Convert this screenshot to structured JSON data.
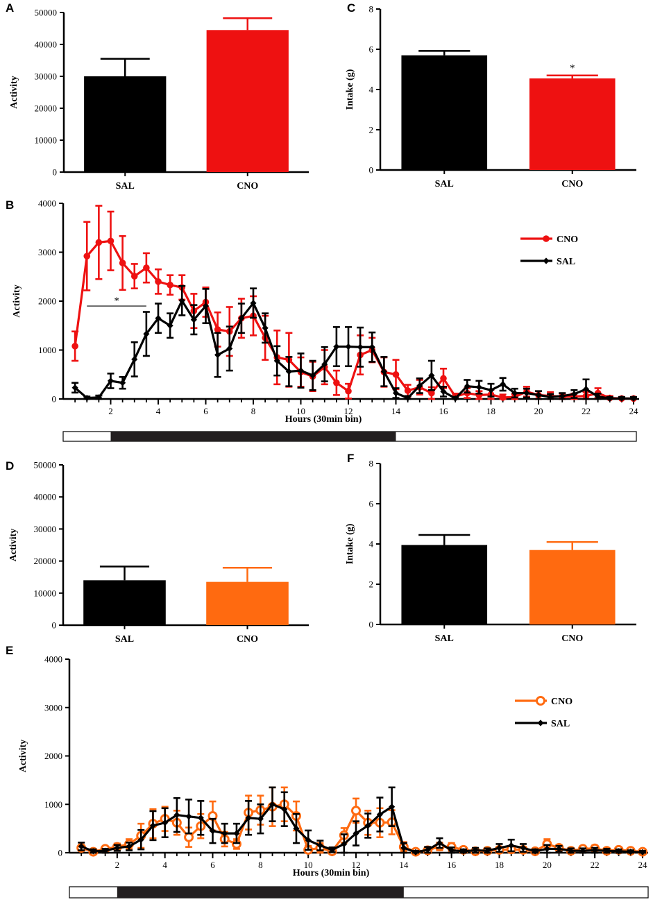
{
  "colors": {
    "SAL": "#000000",
    "CNO_red": "#ee1111",
    "CNO_orange": "#ff6a10",
    "axis": "#000000"
  },
  "chart_data": [
    {
      "panel": "A",
      "type": "bar",
      "ylabel": "Activity",
      "categories": [
        "SAL",
        "CNO"
      ],
      "values": [
        30000,
        44500
      ],
      "errors": [
        5500,
        3700
      ],
      "colors": [
        "#000000",
        "#ee1111"
      ],
      "ylim": [
        0,
        50000
      ],
      "yticks": [
        0,
        10000,
        20000,
        30000,
        40000,
        50000
      ],
      "significance": []
    },
    {
      "panel": "C",
      "type": "bar",
      "ylabel": "Intake (g)",
      "categories": [
        "SAL",
        "CNO"
      ],
      "values": [
        5.7,
        4.55
      ],
      "errors": [
        0.22,
        0.15
      ],
      "colors": [
        "#000000",
        "#ee1111"
      ],
      "ylim": [
        0,
        8
      ],
      "yticks": [
        0,
        2,
        4,
        6,
        8
      ],
      "significance": [
        "",
        "*"
      ]
    },
    {
      "panel": "B",
      "type": "line",
      "ylabel": "Activity",
      "xlabel": "Hours (30min bin)",
      "xlim": [
        0.5,
        24
      ],
      "ylim": [
        0,
        4000
      ],
      "xticks": [
        2,
        4,
        6,
        8,
        10,
        12,
        14,
        16,
        18,
        20,
        22,
        24
      ],
      "yticks": [
        0,
        1000,
        2000,
        3000,
        4000
      ],
      "dark_phase": [
        2,
        14
      ],
      "significance_bar": {
        "from": 1,
        "to": 3.5,
        "value": 1900,
        "label": "*"
      },
      "x": [
        0.5,
        1,
        1.5,
        2,
        2.5,
        3,
        3.5,
        4,
        4.5,
        5,
        5.5,
        6,
        6.5,
        7,
        7.5,
        8,
        8.5,
        9,
        9.5,
        10,
        10.5,
        11,
        11.5,
        12,
        12.5,
        13,
        13.5,
        14,
        14.5,
        15,
        15.5,
        16,
        16.5,
        17,
        17.5,
        18,
        18.5,
        19,
        19.5,
        20,
        20.5,
        21,
        21.5,
        22,
        22.5,
        23,
        23.5,
        24
      ],
      "series": [
        {
          "name": "CNO",
          "marker": "filled-circle",
          "color": "#ee1111",
          "values": [
            1080,
            2920,
            3200,
            3230,
            2780,
            2510,
            2680,
            2400,
            2330,
            2280,
            1800,
            1980,
            1420,
            1380,
            1650,
            1700,
            1250,
            850,
            800,
            550,
            460,
            650,
            330,
            160,
            900,
            1000,
            550,
            500,
            170,
            240,
            120,
            420,
            50,
            120,
            80,
            90,
            30,
            40,
            150,
            80,
            60,
            50,
            50,
            60,
            120,
            20,
            10,
            10
          ],
          "errors": [
            300,
            700,
            750,
            600,
            550,
            250,
            300,
            250,
            200,
            250,
            350,
            300,
            350,
            500,
            400,
            400,
            450,
            550,
            550,
            300,
            300,
            350,
            250,
            150,
            400,
            250,
            300,
            300,
            120,
            150,
            120,
            200,
            60,
            100,
            80,
            100,
            60,
            60,
            100,
            80,
            80,
            60,
            60,
            80,
            100,
            40,
            30,
            30
          ]
        },
        {
          "name": "SAL",
          "marker": "filled-diamond",
          "color": "#000000",
          "values": [
            230,
            20,
            30,
            370,
            330,
            810,
            1330,
            1650,
            1500,
            2010,
            1620,
            1900,
            900,
            1030,
            1650,
            1960,
            1450,
            780,
            560,
            580,
            480,
            710,
            1070,
            1070,
            1060,
            1060,
            560,
            120,
            20,
            270,
            480,
            150,
            10,
            260,
            240,
            180,
            300,
            120,
            120,
            80,
            40,
            60,
            100,
            200,
            50,
            10,
            10,
            10
          ],
          "errors": [
            100,
            30,
            40,
            150,
            120,
            350,
            450,
            300,
            250,
            300,
            300,
            350,
            450,
            450,
            300,
            300,
            300,
            300,
            300,
            350,
            300,
            350,
            400,
            400,
            400,
            300,
            300,
            100,
            40,
            150,
            300,
            100,
            30,
            130,
            130,
            130,
            130,
            90,
            90,
            80,
            60,
            60,
            80,
            200,
            60,
            30,
            30,
            30
          ]
        }
      ],
      "legend": [
        "CNO",
        "SAL"
      ],
      "legend_position": "top-right"
    },
    {
      "panel": "D",
      "type": "bar",
      "ylabel": "Activity",
      "categories": [
        "SAL",
        "CNO"
      ],
      "values": [
        14000,
        13500
      ],
      "errors": [
        4300,
        4400
      ],
      "colors": [
        "#000000",
        "#ff6a10"
      ],
      "ylim": [
        0,
        50000
      ],
      "yticks": [
        0,
        10000,
        20000,
        30000,
        40000,
        50000
      ],
      "significance": []
    },
    {
      "panel": "F",
      "type": "bar",
      "ylabel": "Intake (g)",
      "categories": [
        "SAL",
        "CNO"
      ],
      "values": [
        3.95,
        3.7
      ],
      "errors": [
        0.5,
        0.4
      ],
      "colors": [
        "#000000",
        "#ff6a10"
      ],
      "ylim": [
        0,
        8
      ],
      "yticks": [
        0,
        2,
        4,
        6,
        8
      ],
      "significance": []
    },
    {
      "panel": "E",
      "type": "line",
      "ylabel": "Activity",
      "xlabel": "Hours (30min bin)",
      "xlim": [
        0.5,
        24
      ],
      "ylim": [
        0,
        4000
      ],
      "xticks": [
        2,
        4,
        6,
        8,
        10,
        12,
        14,
        16,
        18,
        20,
        22,
        24
      ],
      "yticks": [
        0,
        1000,
        2000,
        3000,
        4000
      ],
      "dark_phase": [
        2,
        14
      ],
      "x": [
        0.5,
        1,
        1.5,
        2,
        2.5,
        3,
        3.5,
        4,
        4.5,
        5,
        5.5,
        6,
        6.5,
        7,
        7.5,
        8,
        8.5,
        9,
        9.5,
        10,
        10.5,
        11,
        11.5,
        12,
        12.5,
        13,
        13.5,
        14,
        14.5,
        15,
        15.5,
        16,
        16.5,
        17,
        17.5,
        18,
        18.5,
        19,
        19.5,
        20,
        20.5,
        21,
        21.5,
        22,
        22.5,
        23,
        23.5,
        24
      ],
      "series": [
        {
          "name": "CNO",
          "marker": "open-circle",
          "color": "#ff6a10",
          "values": [
            100,
            20,
            80,
            120,
            180,
            350,
            600,
            700,
            620,
            320,
            550,
            760,
            280,
            180,
            830,
            880,
            950,
            1000,
            760,
            60,
            100,
            30,
            360,
            870,
            620,
            620,
            630,
            120,
            20,
            50,
            130,
            120,
            60,
            30,
            40,
            60,
            70,
            60,
            30,
            180,
            100,
            40,
            80,
            90,
            40,
            60,
            40,
            20
          ],
          "errors": [
            60,
            30,
            50,
            70,
            100,
            250,
            300,
            250,
            250,
            200,
            250,
            300,
            150,
            100,
            350,
            300,
            400,
            350,
            300,
            80,
            100,
            50,
            150,
            250,
            250,
            300,
            250,
            100,
            40,
            60,
            80,
            80,
            60,
            50,
            50,
            60,
            60,
            60,
            40,
            100,
            60,
            50,
            60,
            60,
            40,
            50,
            40,
            30
          ]
        },
        {
          "name": "SAL",
          "marker": "filled-diamond",
          "color": "#000000",
          "values": [
            130,
            30,
            40,
            100,
            130,
            270,
            560,
            620,
            780,
            750,
            720,
            450,
            400,
            400,
            720,
            700,
            1000,
            900,
            500,
            260,
            150,
            60,
            180,
            400,
            560,
            790,
            950,
            100,
            10,
            60,
            200,
            50,
            30,
            50,
            40,
            100,
            150,
            100,
            30,
            80,
            80,
            40,
            40,
            50,
            40,
            30,
            20,
            10
          ],
          "errors": [
            80,
            40,
            40,
            60,
            80,
            200,
            300,
            300,
            350,
            350,
            350,
            250,
            200,
            200,
            350,
            300,
            350,
            350,
            300,
            200,
            100,
            50,
            200,
            250,
            250,
            350,
            400,
            100,
            30,
            60,
            100,
            60,
            40,
            50,
            50,
            80,
            120,
            80,
            40,
            80,
            60,
            50,
            50,
            50,
            40,
            40,
            30,
            30
          ]
        }
      ],
      "legend": [
        "CNO",
        "SAL"
      ],
      "legend_position": "top-right"
    }
  ]
}
